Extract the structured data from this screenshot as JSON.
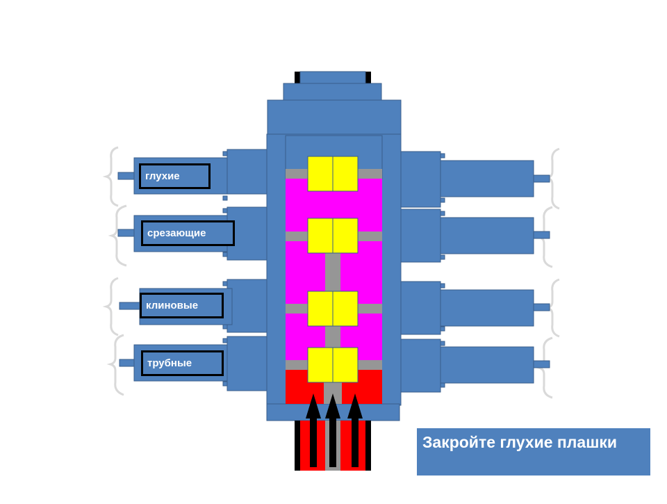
{
  "labels": {
    "blind": "глухие",
    "shear": "срезающие",
    "wedge": "клиновые",
    "pipe": "трубные"
  },
  "caption": "Закройте глухие плашки",
  "colors": {
    "body": "#4f81bd",
    "outline": "#385d8a",
    "ram_cavity": "#ff00ff",
    "ram_block": "#ffff00",
    "wellbore_pressure": "#ff0000",
    "rod": "#969696",
    "flow_arrow": "#000000",
    "bracket": "#d9d9d9"
  }
}
